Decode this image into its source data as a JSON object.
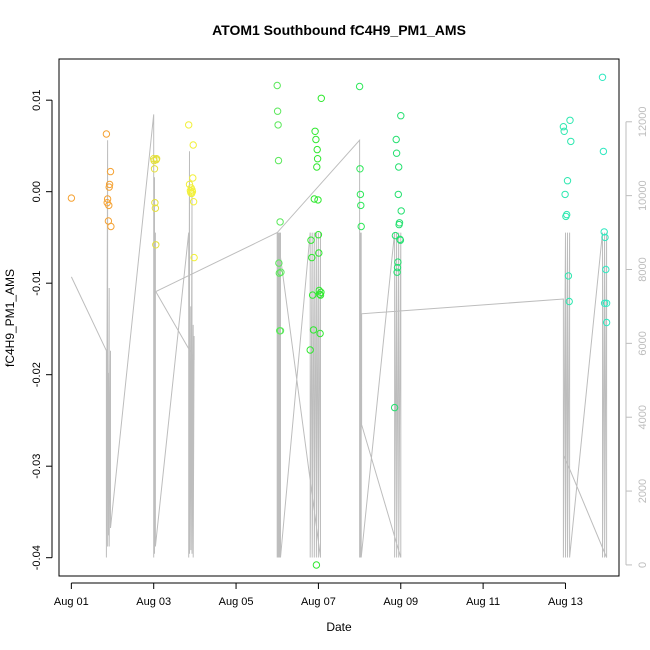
{
  "chart_data": {
    "type": "scatter",
    "title": "ATOM1 Southbound fC4H9_PM1_AMS",
    "xlabel": "Date",
    "ylabel": "fC4H9_PM1_AMS",
    "xlim": [
      -0.3,
      13.3
    ],
    "ylim": [
      -0.042,
      0.0145
    ],
    "y2lim": [
      -300,
      13700
    ],
    "x_ticks": [
      0,
      2,
      4,
      6,
      8,
      10,
      12
    ],
    "x_tick_labels": [
      "Aug 01",
      "Aug 03",
      "Aug 05",
      "Aug 07",
      "Aug 09",
      "Aug 11",
      "Aug 13"
    ],
    "y_ticks": [
      0.01,
      0.0,
      -0.01,
      -0.02,
      -0.03,
      -0.04
    ],
    "y_tick_labels": [
      "0.01",
      "0.00",
      "-0.01",
      "-0.02",
      "-0.03",
      "-0.04"
    ],
    "y2_ticks": [
      0,
      2000,
      4000,
      6000,
      8000,
      10000,
      12000
    ],
    "y2_tick_labels": [
      "0",
      "2000",
      "4000",
      "6000",
      "8000",
      "10000",
      "12000"
    ],
    "colors": {
      "line": "#bdbdbd",
      "day1": "#f5a233",
      "day3": "#e4e03a",
      "day4": "#f2f03a",
      "day6": "#5be85b",
      "day7": "#30e830",
      "day8": "#2ee85a",
      "day9": "#25e070",
      "day12": "#2ee8b0",
      "day13": "#30e8c0"
    },
    "series": [
      {
        "color_key": "day1",
        "x": [
          0.0,
          0.85,
          0.87,
          0.88,
          0.9,
          0.91,
          0.92,
          0.93,
          0.95,
          0.96
        ],
        "y": [
          -0.0007,
          0.0063,
          -0.0012,
          -0.0008,
          -0.0032,
          -0.0015,
          0.0005,
          0.0008,
          0.0022,
          -0.0038
        ]
      },
      {
        "color_key": "day3",
        "x": [
          2.0,
          2.01,
          2.02,
          2.03,
          2.04,
          2.05,
          2.06,
          2.07
        ],
        "y": [
          0.0036,
          0.0034,
          0.0025,
          -0.0012,
          -0.0018,
          -0.0058,
          0.0035,
          0.0036
        ]
      },
      {
        "color_key": "day4",
        "x": [
          2.85,
          2.87,
          2.89,
          2.9,
          2.91,
          2.92,
          2.93,
          2.94,
          2.95,
          2.96,
          2.97,
          2.98
        ],
        "y": [
          0.0073,
          0.0008,
          0.0001,
          -0.0001,
          0.0004,
          -0.0002,
          0.0002,
          0.0,
          0.0015,
          0.0051,
          -0.0011,
          -0.0072
        ]
      },
      {
        "color_key": "day6",
        "x": [
          5.0,
          5.01,
          5.02,
          5.03,
          5.04,
          5.05,
          5.06,
          5.07,
          5.08,
          5.09
        ],
        "y": [
          0.0116,
          0.0088,
          0.0073,
          0.0034,
          -0.0078,
          -0.0089,
          -0.0152,
          -0.0033,
          -0.0152,
          -0.0088
        ]
      },
      {
        "color_key": "day7",
        "x": [
          5.8,
          5.82,
          5.84,
          5.86,
          5.88,
          5.9,
          5.92,
          5.94,
          5.96,
          5.97,
          5.98,
          5.99,
          6.0,
          6.01,
          6.02,
          6.03,
          6.04,
          6.05,
          6.06,
          6.07
        ],
        "y": [
          -0.0173,
          -0.0053,
          -0.0072,
          -0.0113,
          -0.0151,
          -0.0008,
          0.0066,
          0.0057,
          0.0027,
          0.0046,
          0.0036,
          -0.0009,
          -0.0047,
          -0.0067,
          -0.0108,
          -0.0112,
          -0.0155,
          -0.0113,
          -0.011,
          0.0102
        ]
      },
      {
        "color_key": "day7",
        "x": [
          5.95
        ],
        "y": [
          -0.0408
        ]
      },
      {
        "color_key": "day8",
        "x": [
          7.0,
          7.01,
          7.02,
          7.03,
          7.04
        ],
        "y": [
          0.0115,
          0.0025,
          -0.0003,
          -0.0015,
          -0.0038
        ]
      },
      {
        "color_key": "day9",
        "x": [
          7.85,
          7.87,
          7.89,
          7.9,
          7.91,
          7.92,
          7.93,
          7.94,
          7.95,
          7.96,
          7.97,
          7.98,
          7.99,
          8.0,
          8.01
        ],
        "y": [
          -0.0236,
          -0.0048,
          0.0057,
          0.0042,
          -0.0088,
          -0.0083,
          -0.0077,
          -0.0003,
          0.0027,
          -0.0036,
          -0.0034,
          -0.0052,
          -0.0053,
          0.0083,
          -0.0021
        ]
      },
      {
        "color_key": "day12",
        "x": [
          11.95,
          11.97,
          11.99,
          12.01,
          12.03,
          12.05,
          12.07,
          12.09,
          12.11,
          12.13
        ],
        "y": [
          0.0071,
          0.0066,
          -0.0003,
          -0.0027,
          -0.0025,
          0.0012,
          -0.0092,
          -0.012,
          0.0078,
          0.0055
        ]
      },
      {
        "color_key": "day13",
        "x": [
          12.9,
          12.92,
          12.94,
          12.96,
          12.98,
          13.0
        ],
        "y": [
          0.0125,
          0.0044,
          -0.0044,
          -0.005,
          -0.0085,
          -0.0143
        ]
      },
      {
        "color_key": "day13",
        "x": [
          12.95,
          13.0
        ],
        "y": [
          -0.0122,
          -0.0122
        ]
      }
    ],
    "line_series": {
      "x": [
        0.0,
        0.85,
        0.85,
        0.88,
        0.88,
        0.9,
        0.9,
        0.92,
        0.92,
        0.95,
        0.95,
        2.0,
        2.0,
        2.02,
        2.02,
        2.04,
        2.04,
        2.85,
        2.85,
        2.87,
        2.87,
        2.9,
        2.9,
        2.93,
        2.93,
        2.96,
        2.96,
        2.98,
        2.98,
        2.05,
        5.0,
        5.0,
        5.02,
        5.02,
        5.04,
        5.04,
        5.06,
        5.06,
        5.08,
        5.08,
        5.8,
        5.8,
        5.85,
        5.85,
        5.9,
        5.9,
        5.95,
        5.95,
        6.0,
        6.0,
        6.05,
        6.05,
        5.0,
        7.0,
        7.0,
        7.02,
        7.02,
        7.04,
        7.04,
        7.85,
        7.85,
        7.9,
        7.9,
        7.95,
        7.95,
        8.0,
        8.0,
        7.05,
        7.05,
        11.95,
        11.95,
        12.0,
        12.0,
        12.05,
        12.05,
        12.1,
        12.1,
        12.9,
        12.9,
        12.95,
        12.95,
        13.0,
        13.0,
        11.95
      ],
      "y2": [
        7800,
        5800,
        200,
        11500,
        500,
        5200,
        800,
        7500,
        500,
        5800,
        1000,
        12200,
        200,
        10500,
        300,
        9000,
        500,
        9000,
        200,
        11200,
        300,
        7000,
        400,
        10000,
        300,
        6500,
        200,
        6200,
        5600,
        7400,
        9000,
        200,
        9000,
        200,
        9000,
        200,
        9000,
        200,
        9000,
        200,
        9000,
        200,
        9000,
        200,
        9000,
        200,
        9000,
        200,
        9000,
        200,
        9000,
        200,
        9000,
        11500,
        200,
        9000,
        200,
        9000,
        200,
        9000,
        200,
        9000,
        200,
        9000,
        200,
        9000,
        200,
        3800,
        6800,
        7200,
        200,
        9000,
        200,
        9000,
        200,
        9000,
        200,
        9000,
        200,
        9000,
        200,
        9000,
        200,
        3000
      ]
    }
  }
}
